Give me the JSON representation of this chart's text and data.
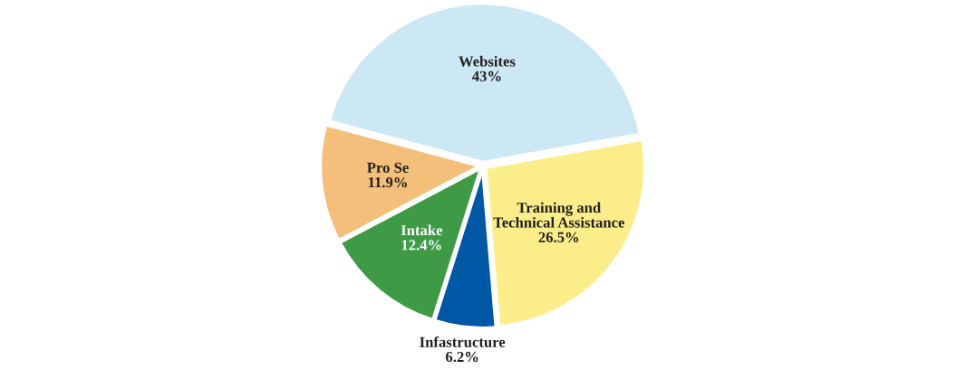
{
  "chart_data": {
    "type": "pie",
    "categories": [
      "Websites",
      "Training and\nTechnical Assistance",
      "Infastructure",
      "Intake",
      "Pro Se"
    ],
    "values": [
      43,
      26.5,
      6.2,
      12.4,
      11.9
    ],
    "colors": [
      "#cce8f4",
      "#fbee8a",
      "#0057a6",
      "#3f9a45",
      "#f4bf7a"
    ],
    "value_labels": [
      "43%",
      "26.5%",
      "6.2%",
      "12.4%",
      "11.9%"
    ]
  }
}
